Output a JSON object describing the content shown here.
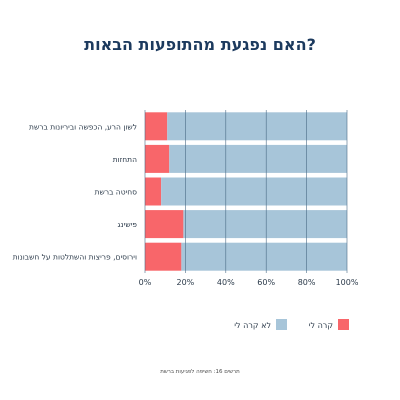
{
  "chart_data": {
    "type": "bar",
    "orientation": "horizontal",
    "stacked": true,
    "title": "האם נפגעת מהתופעות הבאות?",
    "categories": [
      "לשון הרע, הכפשה וביריונות ברשת",
      "התחזות",
      "סחיטה ברשת",
      "פישינג",
      "וירוסים, פריצות והשתלטות על חשבונות"
    ],
    "series": [
      {
        "name": "קרה לי",
        "values": [
          11,
          12,
          8,
          19,
          18
        ],
        "color": "#f8666a"
      },
      {
        "name": "לא קרה לי",
        "values": [
          89,
          88,
          92,
          81,
          82
        ],
        "color": "#a7c5d9"
      }
    ],
    "xlim": [
      0,
      100
    ],
    "x_ticks": [
      "0%",
      "20%",
      "40%",
      "60%",
      "80%",
      "100%"
    ],
    "grid": true,
    "legend_position": "bottom"
  },
  "footer": "תרשים 16: חשיפה לפגיעות ברשת",
  "colors": {
    "title": "#1c3a5e",
    "grid": "#4a6a85"
  }
}
